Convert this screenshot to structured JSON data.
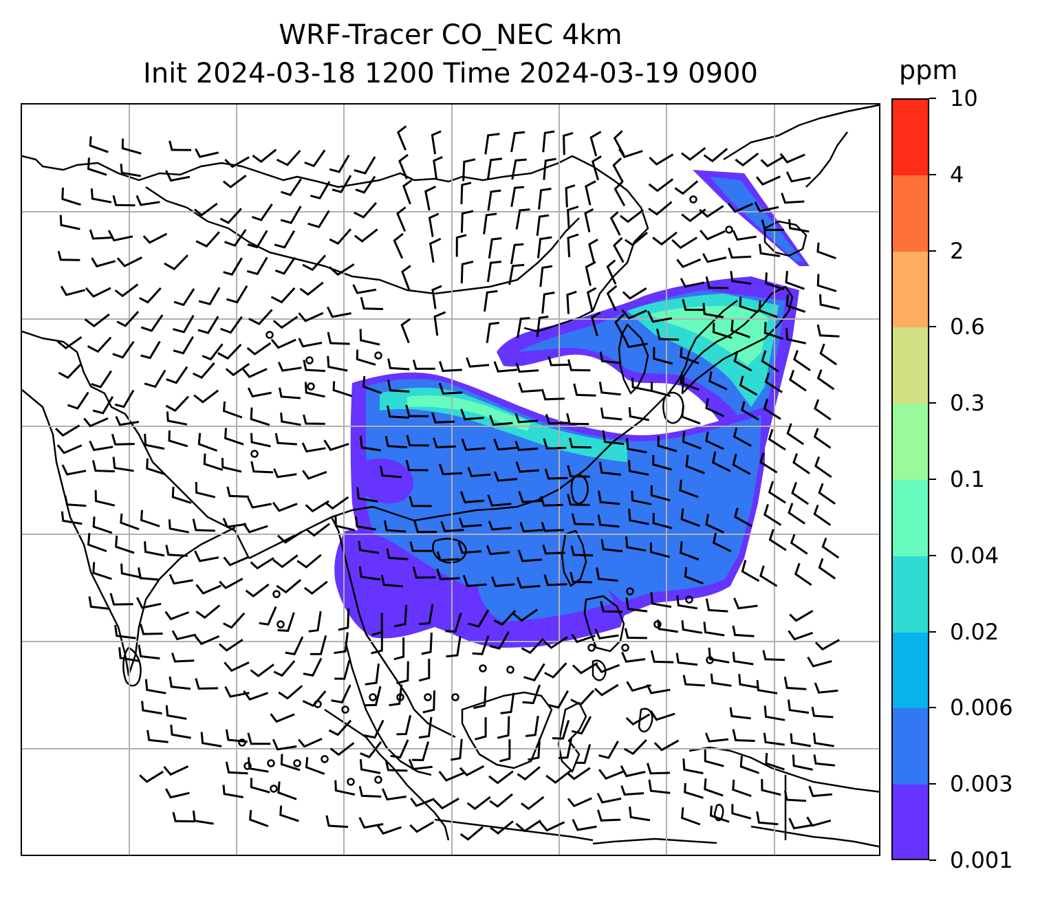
{
  "title": {
    "line1": "WRF-Tracer CO_NEC 4km",
    "line2": "Init 2024-03-18 1200 Time 2024-03-19 0900"
  },
  "colorbar": {
    "unit": "ppm",
    "levels": [
      "0.001",
      "0.003",
      "0.006",
      "0.02",
      "0.04",
      "0.1",
      "0.3",
      "0.6",
      "2",
      "4",
      "10"
    ],
    "colors": [
      "#6633ff",
      "#3377f2",
      "#06b3eb",
      "#2fdbd3",
      "#67fbbd",
      "#99f99b",
      "#d2df83",
      "#fdad5d",
      "#fe7139",
      "#ff2c17"
    ]
  },
  "map": {
    "type": "filled contour with wind barbs",
    "field": "CO tracer concentration",
    "gridlines": true,
    "coastline_color": "#000000",
    "gridline_color": "#b0b0b0",
    "barb_color": "#000000"
  }
}
